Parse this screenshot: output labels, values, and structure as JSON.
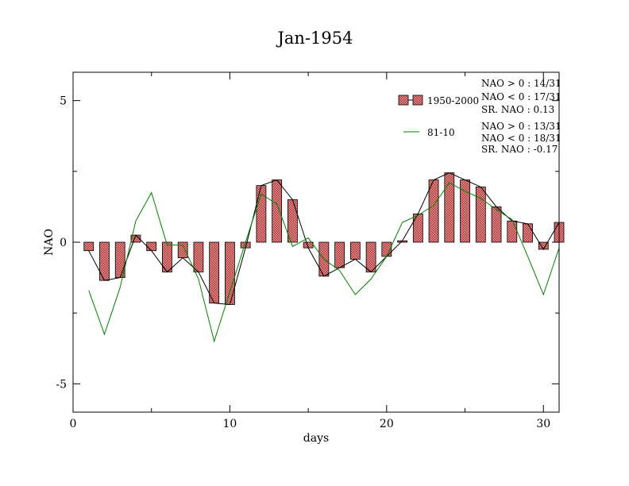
{
  "chart_data": {
    "type": "bar",
    "title": "Jan-1954",
    "xlabel": "days",
    "ylabel": "NAO",
    "xlim": [
      0,
      31
    ],
    "ylim": [
      -6,
      6
    ],
    "x_ticks": [
      0,
      10,
      20,
      30
    ],
    "y_ticks": [
      -5,
      0,
      5
    ],
    "x_tick_labels": [
      "0",
      "10",
      "20",
      "30"
    ],
    "y_tick_labels": [
      "-5",
      "0",
      "5"
    ],
    "grid": false,
    "legend_position": "top-right",
    "x": [
      1,
      2,
      3,
      4,
      5,
      6,
      7,
      8,
      9,
      10,
      11,
      12,
      13,
      14,
      15,
      16,
      17,
      18,
      19,
      20,
      21,
      22,
      23,
      24,
      25,
      26,
      27,
      28,
      29,
      30,
      31
    ],
    "series": [
      {
        "name": "1950-2000",
        "kind": "bar+line",
        "color": "#f08080",
        "values": [
          -0.3,
          -1.35,
          -1.25,
          0.25,
          -0.3,
          -1.05,
          -0.55,
          -1.05,
          -2.15,
          -2.2,
          -0.2,
          2.0,
          2.2,
          1.5,
          -0.2,
          -1.2,
          -0.9,
          -0.6,
          -1.05,
          -0.5,
          0.05,
          1.0,
          2.2,
          2.45,
          2.2,
          1.95,
          1.25,
          0.75,
          0.65,
          -0.25,
          0.7
        ]
      },
      {
        "name": "81-10",
        "kind": "line",
        "color": "#008000",
        "values": [
          -1.7,
          -3.25,
          -1.6,
          0.75,
          1.75,
          -0.1,
          -0.1,
          -1.3,
          -3.5,
          -1.75,
          0.0,
          1.7,
          1.35,
          -0.15,
          0.15,
          -0.6,
          -1.0,
          -1.85,
          -1.3,
          -0.5,
          0.7,
          0.95,
          1.3,
          2.1,
          1.8,
          1.55,
          1.15,
          0.8,
          -0.5,
          -1.85,
          -0.2
        ]
      }
    ],
    "legend": [
      {
        "label": "1950-2000",
        "stats": [
          "NAO > 0 : 14/31",
          "NAO < 0 : 17/31",
          "SR. NAO :  0.13"
        ]
      },
      {
        "label": "81-10",
        "stats": [
          "NAO > 0 : 13/31",
          "NAO < 0 : 18/31",
          "SR. NAO : -0.17"
        ]
      }
    ]
  }
}
